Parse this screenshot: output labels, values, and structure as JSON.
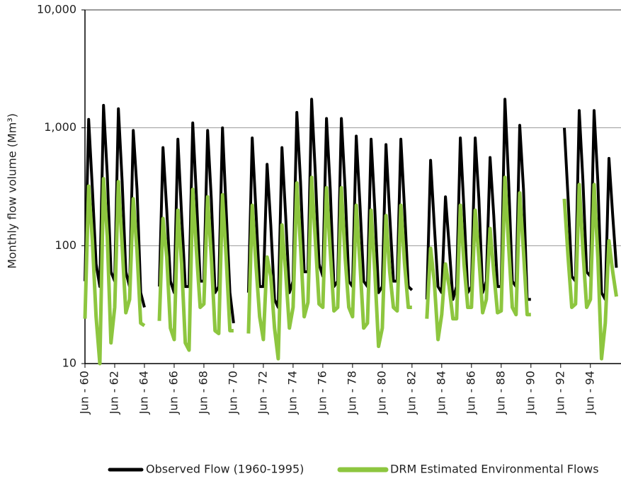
{
  "chart_data": {
    "type": "line",
    "y_label": "Monthly flow volume (Mm³)",
    "log_scale": true,
    "grid": true,
    "legend": "bottom",
    "x": [
      0,
      3,
      6,
      9,
      12,
      15,
      18,
      21,
      24,
      27,
      30,
      33,
      36,
      39,
      42,
      45,
      48,
      51,
      54,
      57,
      60,
      63,
      66,
      69,
      72,
      75,
      78,
      81,
      84,
      87,
      90,
      93,
      96,
      99,
      102,
      105,
      108,
      111,
      114,
      117,
      120,
      123,
      126,
      129,
      132,
      135,
      138,
      141,
      144,
      147,
      150,
      153,
      156,
      159,
      162,
      165,
      168,
      171,
      174,
      177,
      180,
      183,
      186,
      189,
      192,
      195,
      198,
      201,
      204,
      207,
      210,
      213,
      216,
      219,
      222,
      225,
      228,
      231,
      234,
      237,
      240,
      243,
      246,
      249,
      252,
      255,
      258,
      261,
      264,
      267,
      270,
      273,
      276,
      279,
      282,
      285,
      288,
      291,
      294,
      297,
      300,
      303,
      306,
      309,
      312,
      315,
      318,
      321,
      324,
      327,
      330,
      333,
      336,
      339,
      342,
      345,
      348,
      351,
      354,
      357,
      360,
      363,
      366,
      369,
      372,
      375,
      378,
      381,
      384,
      387,
      390,
      393,
      396,
      399,
      402,
      405,
      408,
      411,
      414,
      417,
      420,
      423,
      426,
      429
    ],
    "series": [
      {
        "name": "Observed Flow (1960-1995)",
        "color": "#000000",
        "values": [
          50,
          1180,
          300,
          70,
          45,
          1550,
          400,
          60,
          50,
          1450,
          350,
          60,
          45,
          950,
          300,
          40,
          30,
          null,
          null,
          null,
          45,
          680,
          200,
          50,
          40,
          800,
          180,
          45,
          45,
          1100,
          260,
          50,
          50,
          950,
          250,
          40,
          45,
          1000,
          200,
          40,
          22,
          null,
          null,
          null,
          40,
          820,
          200,
          45,
          45,
          490,
          150,
          35,
          30,
          680,
          180,
          40,
          50,
          1350,
          350,
          60,
          60,
          1750,
          400,
          70,
          55,
          1200,
          300,
          45,
          50,
          1200,
          300,
          50,
          45,
          850,
          220,
          50,
          45,
          800,
          200,
          40,
          45,
          720,
          180,
          50,
          50,
          800,
          200,
          45,
          42,
          null,
          null,
          null,
          35,
          530,
          150,
          45,
          40,
          260,
          100,
          35,
          45,
          820,
          200,
          40,
          45,
          820,
          250,
          40,
          50,
          560,
          180,
          45,
          45,
          1750,
          350,
          50,
          45,
          1050,
          300,
          35,
          35,
          null,
          null,
          null,
          null,
          null,
          null,
          null,
          null,
          1000,
          250,
          55,
          50,
          1400,
          350,
          60,
          55,
          1400,
          350,
          40,
          35,
          550,
          180,
          65
        ]
      },
      {
        "name": "DRM Estimated Environmental Flows",
        "color": "#8dc63f",
        "values": [
          24,
          320,
          110,
          25,
          10,
          370,
          120,
          15,
          30,
          350,
          100,
          27,
          35,
          250,
          90,
          22,
          21,
          null,
          null,
          null,
          23,
          170,
          80,
          20,
          16,
          200,
          70,
          15,
          13,
          300,
          90,
          30,
          32,
          260,
          80,
          19,
          18,
          270,
          80,
          19,
          19,
          null,
          null,
          null,
          18,
          220,
          70,
          25,
          16,
          80,
          55,
          20,
          11,
          150,
          60,
          20,
          30,
          340,
          100,
          25,
          33,
          380,
          110,
          32,
          30,
          310,
          90,
          28,
          30,
          310,
          80,
          30,
          25,
          220,
          70,
          20,
          22,
          200,
          60,
          14,
          20,
          180,
          60,
          30,
          28,
          220,
          70,
          30,
          30,
          null,
          null,
          null,
          24,
          95,
          50,
          16,
          26,
          70,
          45,
          24,
          24,
          220,
          70,
          30,
          30,
          200,
          80,
          27,
          35,
          140,
          60,
          27,
          28,
          380,
          100,
          30,
          26,
          280,
          90,
          26,
          26,
          null,
          null,
          null,
          null,
          null,
          null,
          null,
          null,
          250,
          80,
          30,
          32,
          330,
          90,
          30,
          35,
          330,
          80,
          11,
          22,
          110,
          60,
          37
        ]
      }
    ],
    "xlim": [
      0,
      431
    ],
    "xticks": [
      {
        "value": 0,
        "label": "Jun - 60"
      },
      {
        "value": 24,
        "label": "Jun - 62"
      },
      {
        "value": 48,
        "label": "Jun - 64"
      },
      {
        "value": 72,
        "label": "Jun - 66"
      },
      {
        "value": 96,
        "label": "Jun - 68"
      },
      {
        "value": 120,
        "label": "Jun - 70"
      },
      {
        "value": 144,
        "label": "Jun - 72"
      },
      {
        "value": 168,
        "label": "Jun - 74"
      },
      {
        "value": 192,
        "label": "Jun - 76"
      },
      {
        "value": 216,
        "label": "Jun - 78"
      },
      {
        "value": 240,
        "label": "Jun - 80"
      },
      {
        "value": 264,
        "label": "Jun - 82"
      },
      {
        "value": 288,
        "label": "Jun - 84"
      },
      {
        "value": 312,
        "label": "Jun - 86"
      },
      {
        "value": 336,
        "label": "Jun - 88"
      },
      {
        "value": 360,
        "label": "Jun - 90"
      },
      {
        "value": 384,
        "label": "Jun - 92"
      },
      {
        "value": 408,
        "label": "Jun - 94"
      }
    ],
    "ylim": [
      10,
      10000
    ],
    "yticks": [
      10,
      100,
      {
        "value": 1000,
        "label": "1,000"
      },
      {
        "value": 10000,
        "label": "10,000"
      }
    ]
  }
}
